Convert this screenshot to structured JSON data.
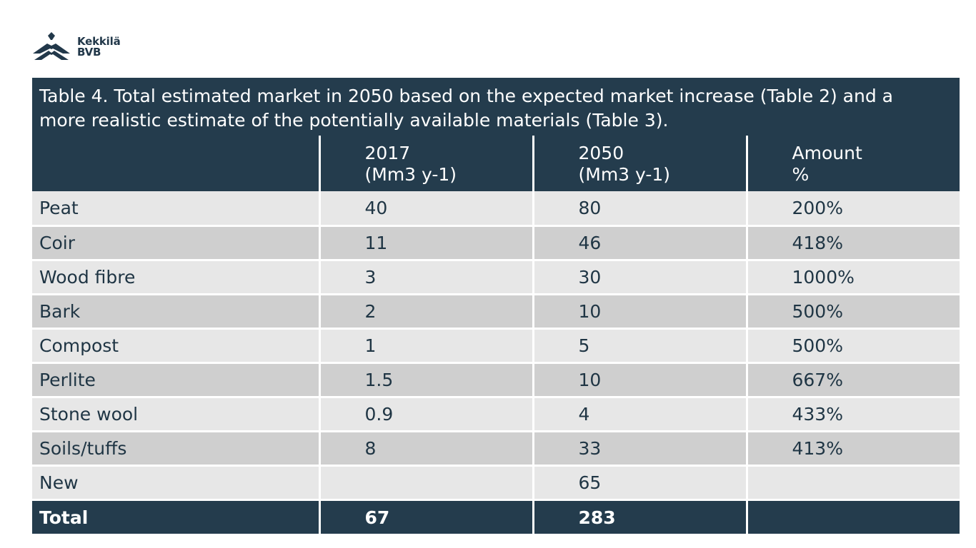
{
  "logo": {
    "line1": "Kekkilä",
    "line2": "BVB",
    "icon": "kekkila-bvb-logo-icon",
    "color": "#22384a"
  },
  "caption": {
    "line1": "Table 4. Total estimated market in 2050 based on the expected market increase (Table 2) and a",
    "line2": "more realistic estimate of the potentially available materials (Table 3)."
  },
  "headers": [
    {
      "line1": "",
      "line2": ""
    },
    {
      "line1": "2017",
      "line2": "(Mm3 y-1)"
    },
    {
      "line1": "2050",
      "line2": "(Mm3 y-1)"
    },
    {
      "line1": "Amount",
      "line2": "%"
    }
  ],
  "rows": [
    [
      "Peat",
      "40",
      "80",
      "200%"
    ],
    [
      "Coir",
      "11",
      "46",
      "418%"
    ],
    [
      "Wood fibre",
      "3",
      "30",
      "1000%"
    ],
    [
      "Bark",
      "2",
      "10",
      "500%"
    ],
    [
      "Compost",
      "1",
      "5",
      "500%"
    ],
    [
      "Perlite",
      "1.5",
      "10",
      "667%"
    ],
    [
      "Stone wool",
      "0.9",
      "4",
      "433%"
    ],
    [
      "Soils/tuffs",
      "8",
      "33",
      "413%"
    ],
    [
      "New",
      "",
      "65",
      ""
    ]
  ],
  "total": [
    "Total",
    "67",
    "283",
    ""
  ],
  "colors": {
    "header_bg": "#243c4d",
    "row_light": "#e7e7e7",
    "row_dark": "#cfcfcf",
    "text": "#1f3544"
  }
}
